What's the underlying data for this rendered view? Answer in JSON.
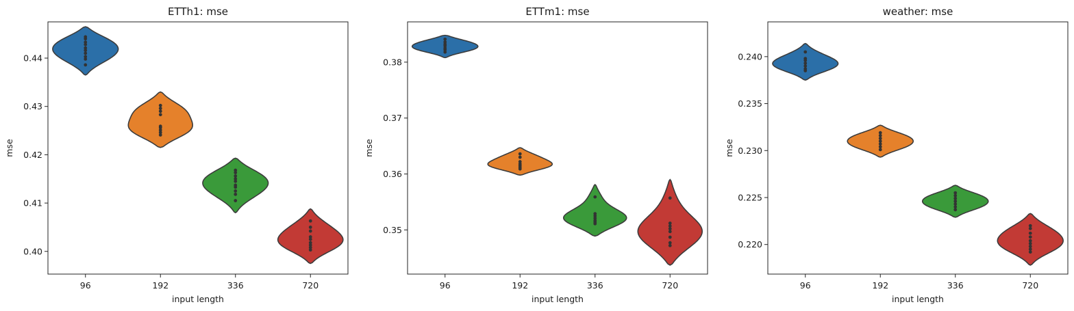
{
  "chart_data": [
    {
      "type": "violin",
      "title": "ETTh1: mse",
      "xlabel": "input length",
      "ylabel": "mse",
      "categories": [
        "96",
        "192",
        "336",
        "720"
      ],
      "colors": [
        "#2b6fa8",
        "#e5812b",
        "#3a9a3a",
        "#c23a35"
      ],
      "ylim": [
        0.3953,
        0.4475
      ],
      "yticks": [
        0.4,
        0.41,
        0.42,
        0.43,
        0.44
      ],
      "ytick_labels": [
        "0.40",
        "0.41",
        "0.42",
        "0.43",
        "0.44"
      ],
      "series": [
        {
          "category": "96",
          "range": [
            0.4365,
            0.4465
          ],
          "points": [
            0.4386,
            0.4398,
            0.4403,
            0.441,
            0.4416,
            0.4421,
            0.4428,
            0.4433,
            0.444,
            0.4444
          ]
        },
        {
          "category": "192",
          "range": [
            0.4215,
            0.433
          ],
          "points": [
            0.4241,
            0.4246,
            0.4251,
            0.4256,
            0.4259,
            0.4283,
            0.429,
            0.4296,
            0.4302
          ]
        },
        {
          "category": "336",
          "range": [
            0.408,
            0.4193
          ],
          "points": [
            0.4105,
            0.4118,
            0.4125,
            0.4133,
            0.4137,
            0.4145,
            0.415,
            0.4156,
            0.4163,
            0.4168
          ]
        },
        {
          "category": "720",
          "range": [
            0.3975,
            0.4088
          ],
          "points": [
            0.4003,
            0.4008,
            0.4013,
            0.4018,
            0.4025,
            0.403,
            0.4042,
            0.405,
            0.4063
          ]
        }
      ]
    },
    {
      "type": "violin",
      "title": "ETTm1: mse",
      "xlabel": "input length",
      "ylabel": "mse",
      "categories": [
        "96",
        "192",
        "336",
        "720"
      ],
      "colors": [
        "#2b6fa8",
        "#e5812b",
        "#3a9a3a",
        "#c23a35"
      ],
      "ylim": [
        0.3421,
        0.3872
      ],
      "yticks": [
        0.35,
        0.36,
        0.37,
        0.38
      ],
      "ytick_labels": [
        "0.35",
        "0.36",
        "0.37",
        "0.38"
      ],
      "series": [
        {
          "category": "96",
          "range": [
            0.3808,
            0.3848
          ],
          "points": [
            0.3818,
            0.3822,
            0.3825,
            0.3829,
            0.3832,
            0.3836,
            0.3841
          ]
        },
        {
          "category": "192",
          "range": [
            0.3598,
            0.3647
          ],
          "points": [
            0.3609,
            0.3612,
            0.3615,
            0.3618,
            0.3622,
            0.363,
            0.3636
          ]
        },
        {
          "category": "336",
          "range": [
            0.3489,
            0.3581
          ],
          "points": [
            0.3511,
            0.3514,
            0.3517,
            0.3521,
            0.3525,
            0.3529,
            0.3559
          ]
        },
        {
          "category": "720",
          "range": [
            0.3437,
            0.359
          ],
          "points": [
            0.3472,
            0.3477,
            0.3487,
            0.3497,
            0.3502,
            0.3507,
            0.3512,
            0.3557
          ]
        }
      ]
    },
    {
      "type": "violin",
      "title": "weather: mse",
      "xlabel": "input length",
      "ylabel": "mse",
      "categories": [
        "96",
        "192",
        "336",
        "720"
      ],
      "colors": [
        "#2b6fa8",
        "#e5812b",
        "#3a9a3a",
        "#c23a35"
      ],
      "ylim": [
        0.21685,
        0.2437
      ],
      "yticks": [
        0.22,
        0.225,
        0.23,
        0.235,
        0.24
      ],
      "ytick_labels": [
        "0.220",
        "0.225",
        "0.230",
        "0.235",
        "0.240"
      ],
      "series": [
        {
          "category": "96",
          "range": [
            0.2375,
            0.2414
          ],
          "points": [
            0.2385,
            0.2387,
            0.239,
            0.2393,
            0.2396,
            0.2398,
            0.2405
          ]
        },
        {
          "category": "192",
          "range": [
            0.2293,
            0.2327
          ],
          "points": [
            0.2301,
            0.2304,
            0.2307,
            0.231,
            0.2313,
            0.2316,
            0.2319
          ]
        },
        {
          "category": "336",
          "range": [
            0.2229,
            0.2263
          ],
          "points": [
            0.2237,
            0.224,
            0.2243,
            0.2246,
            0.2249,
            0.2252,
            0.2255
          ]
        },
        {
          "category": "720",
          "range": [
            0.2178,
            0.2233
          ],
          "points": [
            0.2192,
            0.2195,
            0.2198,
            0.2201,
            0.2204,
            0.2208,
            0.2212,
            0.2217,
            0.222
          ]
        }
      ]
    }
  ]
}
